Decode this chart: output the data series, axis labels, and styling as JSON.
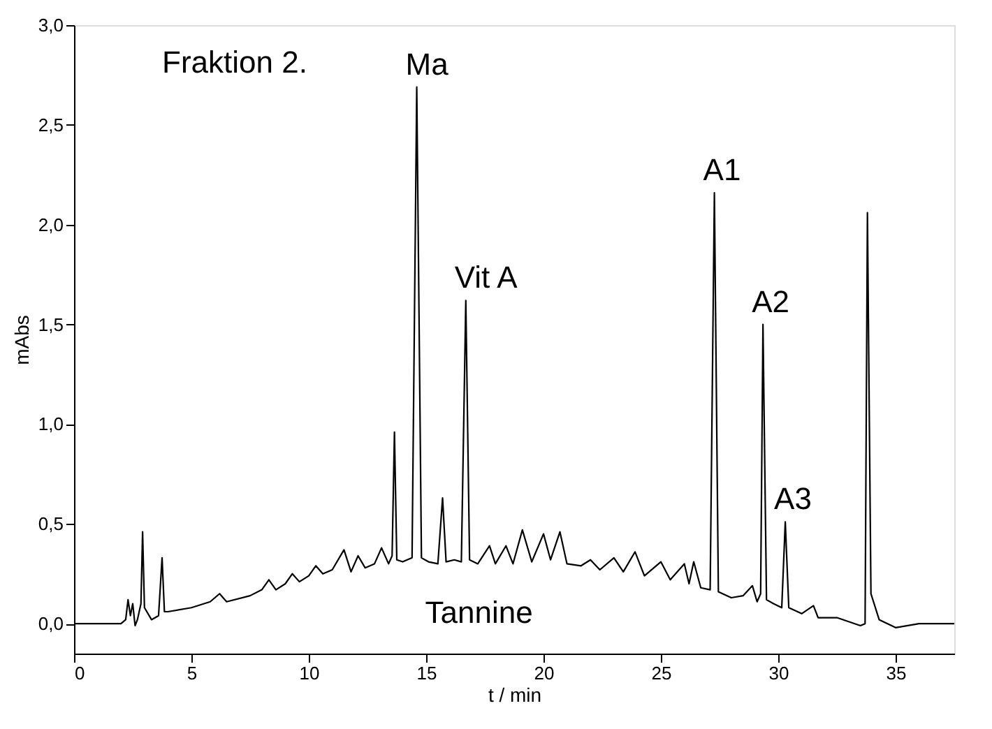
{
  "chart_data": {
    "type": "line",
    "xlabel": "t / min",
    "ylabel": "mAbs",
    "xlim": [
      0,
      37.5
    ],
    "xticks": [
      0,
      5,
      10,
      15,
      20,
      25,
      30,
      35
    ],
    "ylim": [
      -0.15,
      3.0
    ],
    "yticks": [
      {
        "value": 0,
        "label": "0,0"
      },
      {
        "value": 0.5,
        "label": "0,5"
      },
      {
        "value": 1.0,
        "label": "1,0"
      },
      {
        "value": 1.5,
        "label": "1,5"
      },
      {
        "value": 2.0,
        "label": "2,0"
      },
      {
        "value": 2.5,
        "label": "2,5"
      },
      {
        "value": 3.0,
        "label": "3,0"
      }
    ],
    "grid": false,
    "marker": "none",
    "line_style": "solid",
    "series": [
      {
        "color": "#000000",
        "x": [
          0,
          1,
          2,
          2.2,
          2.3,
          2.4,
          2.5,
          2.6,
          2.7,
          2.85,
          2.92,
          3.0,
          3.3,
          3.6,
          3.75,
          3.85,
          4.0,
          5.0,
          5.8,
          6.2,
          6.5,
          7.5,
          8.0,
          8.3,
          8.6,
          9.0,
          9.3,
          9.6,
          10.0,
          10.3,
          10.6,
          11.0,
          11.5,
          11.8,
          12.1,
          12.4,
          12.8,
          13.1,
          13.4,
          13.55,
          13.65,
          13.75,
          14.0,
          14.4,
          14.6,
          14.8,
          15.1,
          15.5,
          15.7,
          15.85,
          16.2,
          16.5,
          16.69,
          16.85,
          17.2,
          17.7,
          17.95,
          18.4,
          18.7,
          19.1,
          19.5,
          20.0,
          20.3,
          20.7,
          21.0,
          21.6,
          22.0,
          22.4,
          23.0,
          23.4,
          23.9,
          24.3,
          25.0,
          25.4,
          26.0,
          26.2,
          26.4,
          26.7,
          27.1,
          27.28,
          27.45,
          28.0,
          28.5,
          28.9,
          29.1,
          29.25,
          29.35,
          29.5,
          29.8,
          30.15,
          30.3,
          30.45,
          31.0,
          31.5,
          31.7,
          32.5,
          33.5,
          33.7,
          33.8,
          33.95,
          34.3,
          35.0,
          36.0,
          37.5
        ],
        "values": [
          0.0,
          0.0,
          0.0,
          0.02,
          0.12,
          0.04,
          0.1,
          -0.01,
          0.02,
          0.1,
          0.46,
          0.08,
          0.02,
          0.04,
          0.33,
          0.06,
          0.06,
          0.08,
          0.11,
          0.15,
          0.11,
          0.14,
          0.17,
          0.22,
          0.17,
          0.2,
          0.25,
          0.21,
          0.24,
          0.29,
          0.25,
          0.27,
          0.37,
          0.26,
          0.34,
          0.28,
          0.3,
          0.38,
          0.3,
          0.34,
          0.96,
          0.32,
          0.31,
          0.33,
          2.69,
          0.33,
          0.31,
          0.3,
          0.63,
          0.31,
          0.32,
          0.31,
          1.62,
          0.32,
          0.3,
          0.39,
          0.3,
          0.39,
          0.3,
          0.47,
          0.31,
          0.45,
          0.32,
          0.46,
          0.3,
          0.29,
          0.32,
          0.27,
          0.33,
          0.26,
          0.36,
          0.24,
          0.31,
          0.22,
          0.3,
          0.2,
          0.31,
          0.18,
          0.17,
          2.16,
          0.16,
          0.13,
          0.14,
          0.19,
          0.11,
          0.15,
          1.5,
          0.12,
          0.1,
          0.08,
          0.51,
          0.08,
          0.05,
          0.09,
          0.03,
          0.03,
          -0.01,
          0.0,
          2.06,
          0.15,
          0.02,
          -0.02,
          0.0,
          0.0
        ]
      }
    ],
    "annotations": [
      "Fraktion 2.",
      "Tannine",
      {
        "text": "Ma",
        "x": 14.6,
        "y": 2.69
      },
      {
        "text": "Vit A",
        "x": 16.69,
        "y": 1.62
      },
      {
        "text": "A1",
        "x": 27.28,
        "y": 2.16
      },
      {
        "text": "A2",
        "x": 29.35,
        "y": 1.5
      },
      {
        "text": "A3",
        "x": 30.3,
        "y": 0.51
      }
    ]
  }
}
